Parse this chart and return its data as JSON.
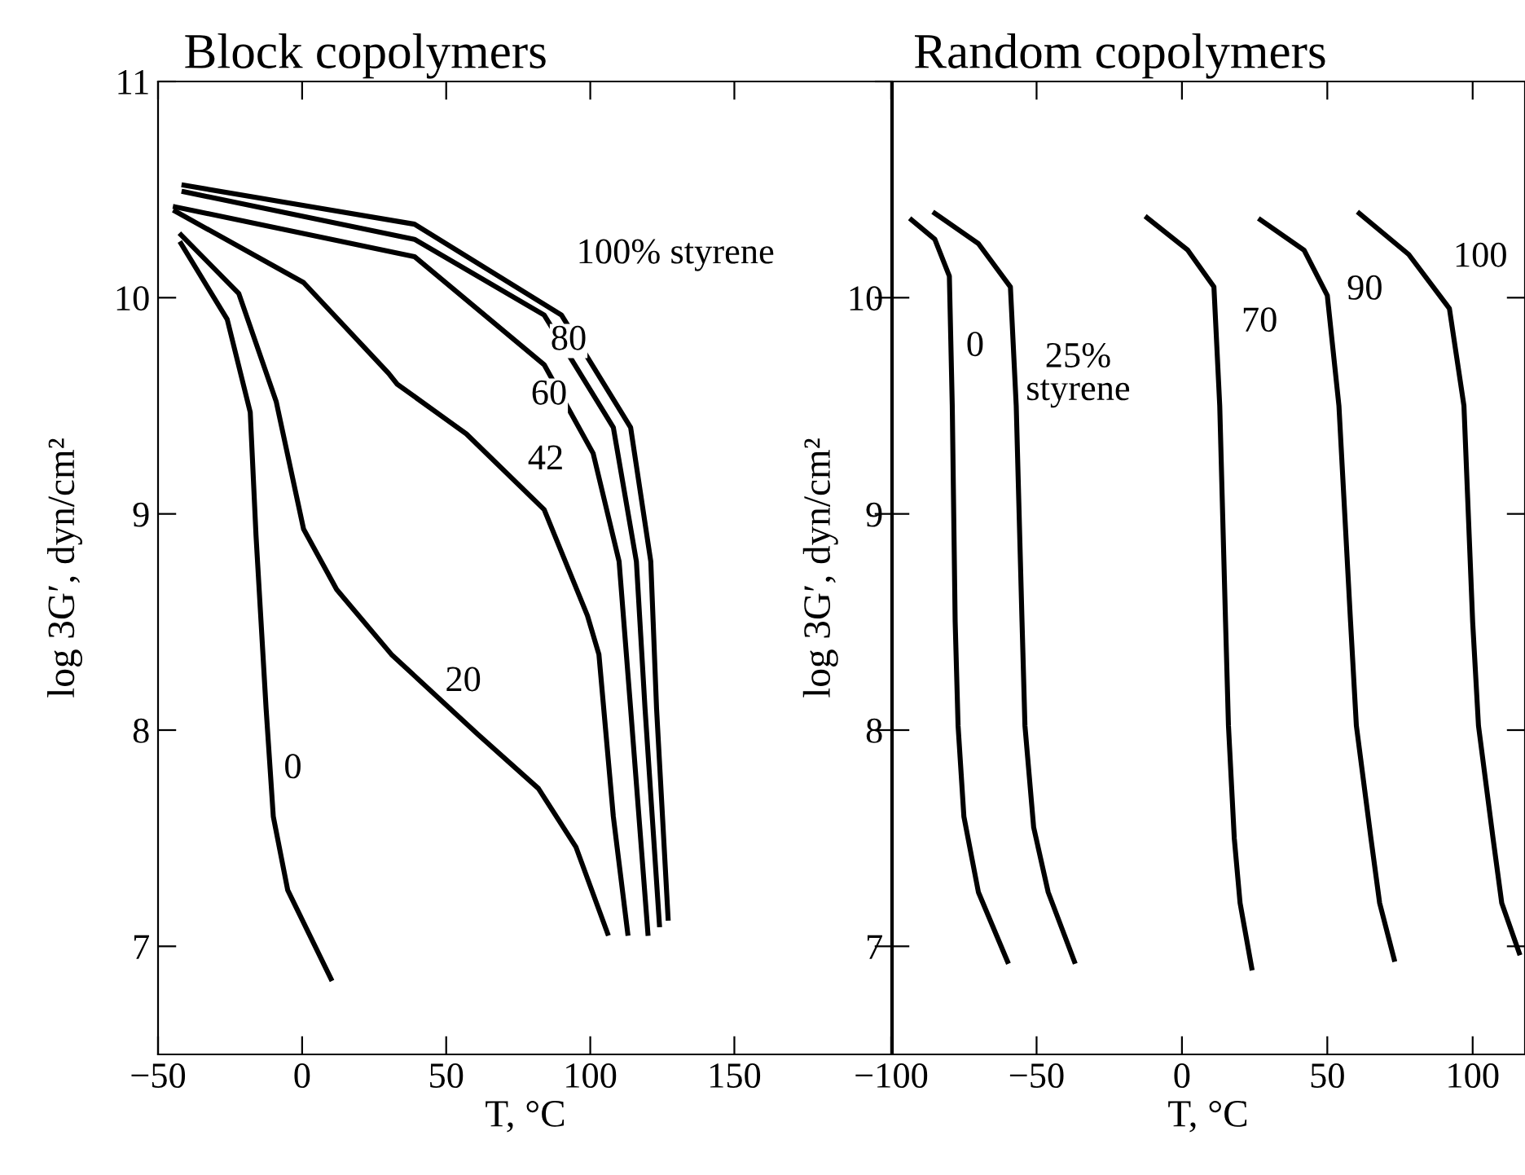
{
  "chart_data": [
    {
      "type": "line",
      "title": "Block copolymers",
      "xlabel": "T, °C",
      "ylabel": "log 3G′, dyn/cm²",
      "xlim": [
        -50,
        205
      ],
      "ylim": [
        6.5,
        11
      ],
      "xticks": [
        -50,
        0,
        50,
        100,
        150
      ],
      "yticks": [
        7,
        8,
        9,
        10,
        11
      ],
      "grid": false,
      "series": [
        {
          "color": "#000000",
          "x": [
            -41,
            39,
            90,
            114,
            121,
            123,
            127
          ],
          "values": [
            10.52,
            10.34,
            9.92,
            9.4,
            8.78,
            8.1,
            7.13
          ]
        },
        {
          "color": "#000000",
          "x": [
            -41,
            39,
            84,
            108,
            116,
            119,
            124
          ],
          "values": [
            10.49,
            10.27,
            9.92,
            9.4,
            8.78,
            8.1,
            7.1
          ]
        },
        {
          "color": "#000000",
          "x": [
            -44,
            39,
            84,
            101,
            110,
            114,
            120
          ],
          "values": [
            10.42,
            10.19,
            9.69,
            9.28,
            8.78,
            8.1,
            7.06
          ]
        },
        {
          "color": "#000000",
          "x": [
            -44,
            0.5,
            30,
            33,
            57,
            84,
            99,
            103,
            108,
            113
          ],
          "values": [
            10.4,
            10.07,
            9.65,
            9.6,
            9.37,
            9.02,
            8.53,
            8.35,
            7.6,
            7.06
          ]
        },
        {
          "color": "#000000",
          "x": [
            -42,
            -22,
            -9,
            0.5,
            12,
            31,
            61,
            82,
            95,
            106
          ],
          "values": [
            10.29,
            10.02,
            9.52,
            8.93,
            8.65,
            8.35,
            7.98,
            7.73,
            7.46,
            7.06
          ]
        },
        {
          "color": "#000000",
          "x": [
            -42,
            -26,
            -18,
            -16,
            -12.5,
            -10,
            -5,
            10
          ],
          "values": [
            10.25,
            9.9,
            9.47,
            8.9,
            8.1,
            7.6,
            7.26,
            6.85
          ]
        }
      ],
      "annotations": [
        {
          "text": "100% styrene",
          "x": 90,
          "y": 9.92
        },
        {
          "text": "80",
          "x": 84,
          "y": 9.92
        },
        {
          "text": "60",
          "x": 84,
          "y": 9.69
        },
        {
          "text": "42",
          "x": 84,
          "y": 9.02
        },
        {
          "text": "20",
          "x": 61,
          "y": 7.98
        },
        {
          "text": "0",
          "x": -10,
          "y": 7.6
        }
      ]
    },
    {
      "type": "line",
      "title": "Random copolymers",
      "xlabel": "T, °C",
      "ylabel": "log 3G′, dyn/cm²",
      "xlim": [
        -100,
        118
      ],
      "ylim": [
        6.5,
        11
      ],
      "xticks": [
        -100,
        -50,
        0,
        50,
        100
      ],
      "yticks": [
        7,
        8,
        9,
        10
      ],
      "grid": false,
      "series": [
        {
          "color": "#000000",
          "x": [
            -93,
            -85,
            -80,
            -79,
            -78,
            -77,
            -75,
            -70,
            -60
          ],
          "values": [
            10.36,
            10.27,
            10.1,
            9.5,
            8.5,
            8.02,
            7.6,
            7.25,
            6.93
          ]
        },
        {
          "color": "#000000",
          "x": [
            -85,
            -70,
            -59,
            -57,
            -55,
            -54,
            -51,
            -46,
            -37
          ],
          "values": [
            10.39,
            10.25,
            10.05,
            9.5,
            8.5,
            8.02,
            7.55,
            7.25,
            6.93
          ]
        },
        {
          "color": "#000000",
          "x": [
            -12,
            2,
            11,
            13,
            15,
            16,
            18,
            20,
            24
          ],
          "values": [
            10.37,
            10.22,
            10.05,
            9.5,
            8.5,
            8.02,
            7.5,
            7.2,
            6.9
          ]
        },
        {
          "color": "#000000",
          "x": [
            27,
            42,
            50,
            54,
            58,
            60,
            65,
            68,
            73
          ],
          "values": [
            10.36,
            10.22,
            10.01,
            9.5,
            8.5,
            8.02,
            7.5,
            7.2,
            6.94
          ]
        },
        {
          "color": "#000000",
          "x": [
            61,
            78,
            92,
            97,
            100,
            102,
            107,
            110,
            116
          ],
          "values": [
            10.39,
            10.2,
            9.95,
            9.5,
            8.5,
            8.02,
            7.5,
            7.2,
            6.97
          ]
        }
      ],
      "annotations": [
        {
          "text": "0",
          "x": -79,
          "y": 9.5
        },
        {
          "text": "25%\nstyrene",
          "x": -57,
          "y": 9.5
        },
        {
          "text": "70",
          "x": 11,
          "y": 10.05
        },
        {
          "text": "90",
          "x": 50,
          "y": 10.01
        },
        {
          "text": "100",
          "x": 92,
          "y": 9.95
        }
      ]
    }
  ]
}
